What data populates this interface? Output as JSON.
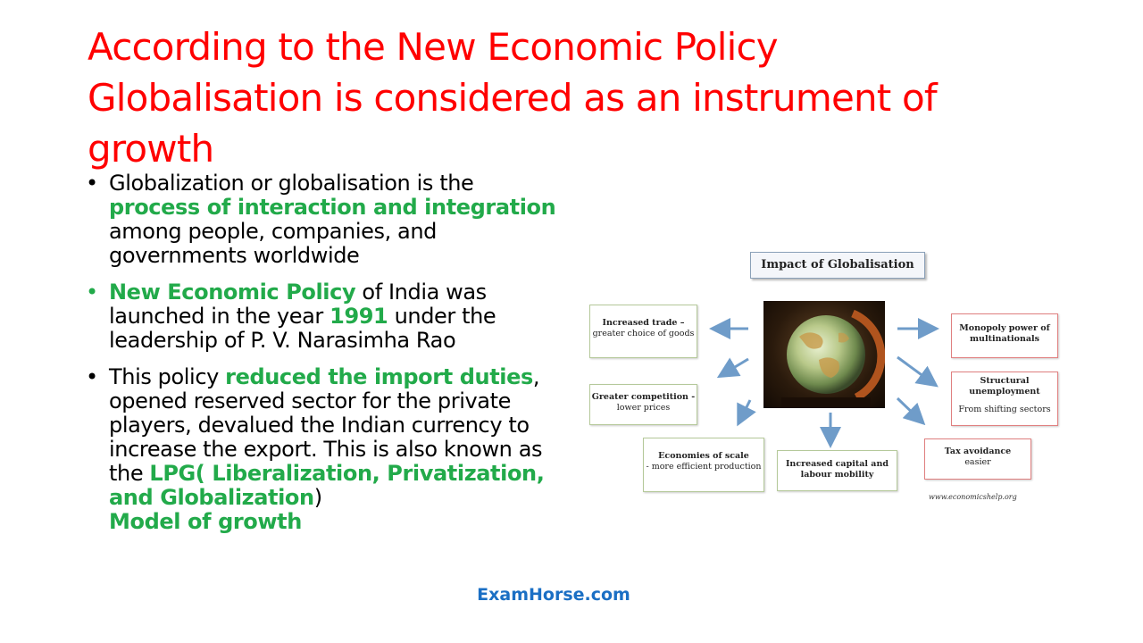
{
  "title": {
    "line1": "According to the New Economic Policy",
    "line2": "Globalisation is considered as an instrument of",
    "line3": "growth"
  },
  "bullets": {
    "b1": {
      "t1": "Globalization or globalisation is the ",
      "h1": "process of interaction and integration",
      "t2": " among people, companies, and governments worldwide"
    },
    "b2": {
      "h1": "New Economic Policy",
      "t1": " of India was launched in the year ",
      "h2": "1991",
      "t2": " under the leadership of P. V. Narasimha Rao"
    },
    "b3": {
      "t1": " This policy ",
      "h1": "reduced the import duties",
      "t2": ", opened reserved sector for the private players, devalued the Indian currency to increase the export. This is also known as the ",
      "h2": "LPG( Liberalization, Privatization, and Globalization",
      "t3": ")",
      "h3": "Model of growth"
    }
  },
  "diagram": {
    "title": "Impact of Globalisation",
    "trade": {
      "bold": "Increased trade –",
      "sub": "greater choice of goods"
    },
    "competition": {
      "bold": "Greater competition -",
      "sub": "lower prices"
    },
    "scale": {
      "bold": "Economies of scale",
      "sub": "- more efficient production"
    },
    "capital": {
      "bold": "Increased capital and labour mobility"
    },
    "monopoly": {
      "bold": "Monopoly power of multinationals"
    },
    "structural": {
      "bold": "Structural unemployment",
      "sub": "From shifting sectors"
    },
    "tax": {
      "bold": "Tax avoidance",
      "sub": "easier"
    },
    "source": "www.economicshelp.org"
  },
  "footer": "ExamHorse.com",
  "colors": {
    "title": "#ff0000",
    "highlight": "#22aa4a",
    "footer": "#1b6fc4",
    "arrow": "#6f9cc9"
  }
}
